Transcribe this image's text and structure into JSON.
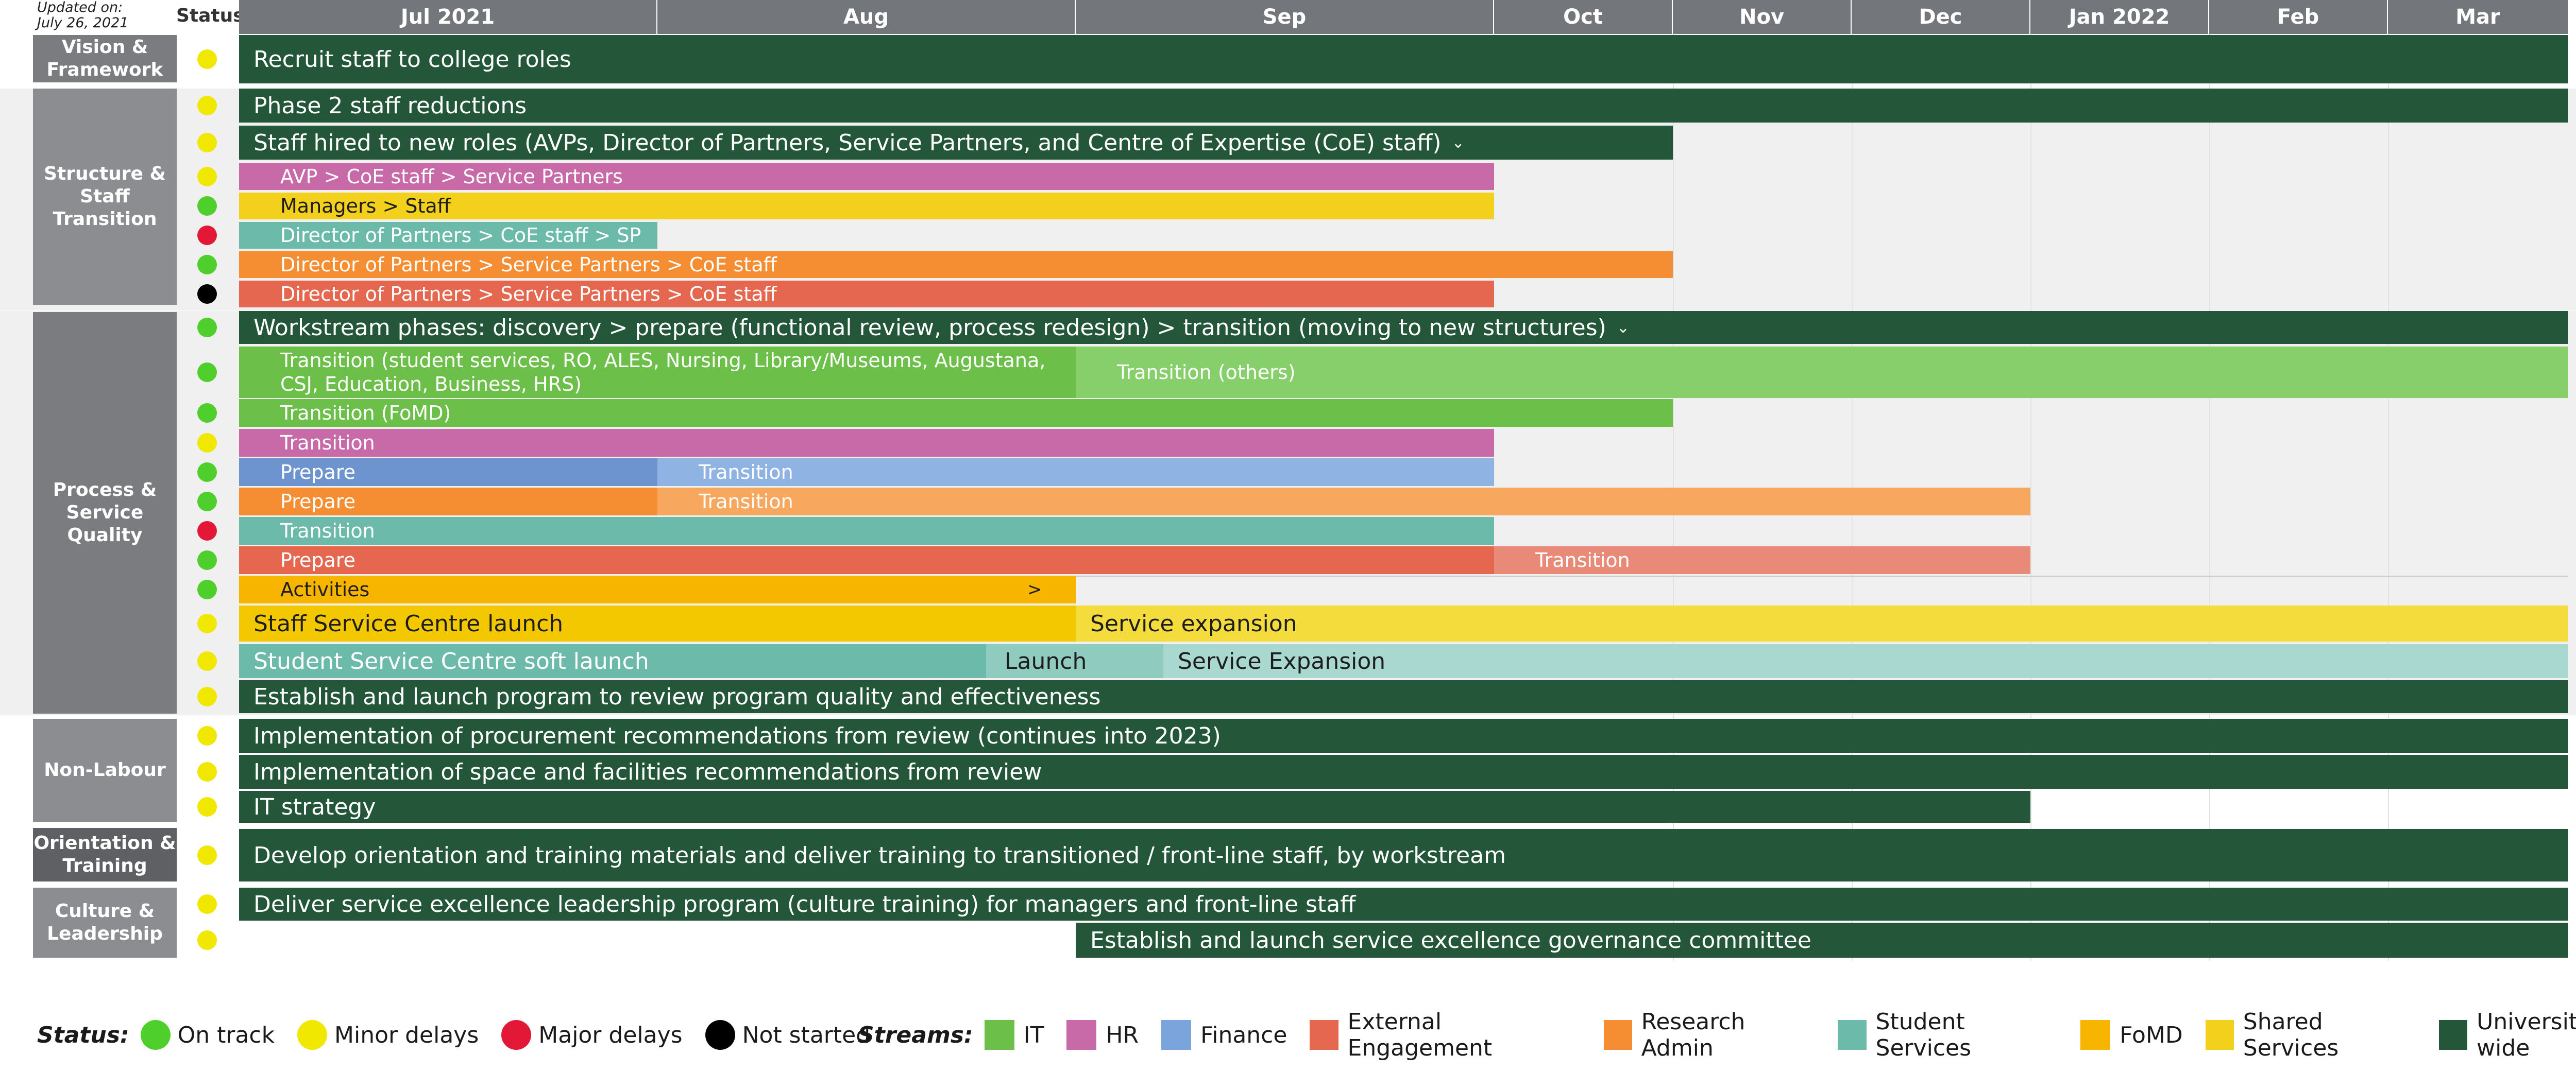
{
  "header": {
    "updated_label": "Updated on:",
    "updated_date": "July 26, 2021",
    "status_label": "Status",
    "months": [
      "Jul 2021",
      "Aug",
      "Sep",
      "Oct",
      "Nov",
      "Dec",
      "Jan 2022",
      "Feb",
      "Mar"
    ]
  },
  "categories": {
    "vision": "Vision & Framework",
    "structure": "Structure & Staff Transition",
    "process": "Process & Service Quality",
    "nonlabour": "Non-Labour",
    "orientation": "Orientation & Training",
    "culture": "Culture & Leadership"
  },
  "colors": {
    "university_wide": "#24573a",
    "it": "#6cc04a",
    "it_light": "#86cf6a",
    "hr": "#c96aa8",
    "finance": "#7ba4dd",
    "external": "#e5674f",
    "research": "#f58d32",
    "student": "#6bbaaa",
    "fomd": "#f7b500",
    "shared": "#f3d01c",
    "on_track": "#4fcf2b",
    "minor": "#f0e800",
    "major": "#e31837",
    "not_started": "#000000"
  },
  "rows": {
    "recruit": "Recruit staff to college roles",
    "phase2": "Phase 2 staff reductions",
    "staff_hired": "Staff hired to new roles (AVPs, Director of Partners, Service Partners, and Centre of Expertise (CoE) staff)",
    "avp": "AVP > CoE staff > Service Partners",
    "managers": "Managers > Staff",
    "dir_sp": "Director of Partners > CoE staff > SP",
    "dir_orange": "Director of Partners > Service Partners > CoE staff",
    "dir_red": "Director of Partners > Service Partners > CoE staff",
    "workstream": "Workstream phases: discovery > prepare (functional review, process redesign) > transition (moving to new structures)",
    "transition_student": "Transition (student services, RO, ALES, Nursing, Library/Museums, Augustana, CSJ, Education, Business, HRS)",
    "transition_others": "Transition (others)",
    "transition_fomd": "Transition (FoMD)",
    "transition_hr": "Transition",
    "prepare_fin": "Prepare",
    "transition_fin": "Transition",
    "prepare_res": "Prepare",
    "transition_res": "Transition",
    "transition_stu": "Transition",
    "prepare_ext": "Prepare",
    "transition_ext": "Transition",
    "activities": "Activities",
    "activities_arrow": ">",
    "ssc_launch": "Staff Service Centre launch",
    "service_expansion": "Service expansion",
    "student_soft": "Student Service Centre soft launch",
    "launch": "Launch",
    "service_expansion2": "Service Expansion",
    "program_review": "Establish and launch program to review program quality and effectiveness",
    "procurement": "Implementation of procurement recommendations from review (continues into 2023)",
    "space": "Implementation of space and facilities recommendations from review",
    "it_strategy": "IT strategy",
    "orientation": "Develop orientation and training materials and deliver training to transitioned / front-line staff, by workstream",
    "leadership": "Deliver service excellence leadership program (culture training) for managers and front-line staff",
    "governance": "Establish and launch service excellence governance committee"
  },
  "status": [
    "minor",
    "minor",
    "minor",
    "minor",
    "on_track",
    "major",
    "on_track",
    "not_started",
    "on_track",
    "on_track",
    "on_track",
    "minor",
    "on_track",
    "on_track",
    "major",
    "on_track",
    "on_track",
    "minor",
    "minor",
    "minor",
    "minor",
    "minor",
    "minor",
    "minor",
    "minor",
    "minor"
  ],
  "legend": {
    "status_title": "Status:",
    "status_items": [
      "On track",
      "Minor delays",
      "Major delays",
      "Not started"
    ],
    "streams_title": "Streams:",
    "stream_items": [
      "IT",
      "HR",
      "Finance",
      "External Engagement",
      "Research Admin",
      "Student Services",
      "FoMD",
      "Shared Services",
      "University-wide"
    ]
  }
}
